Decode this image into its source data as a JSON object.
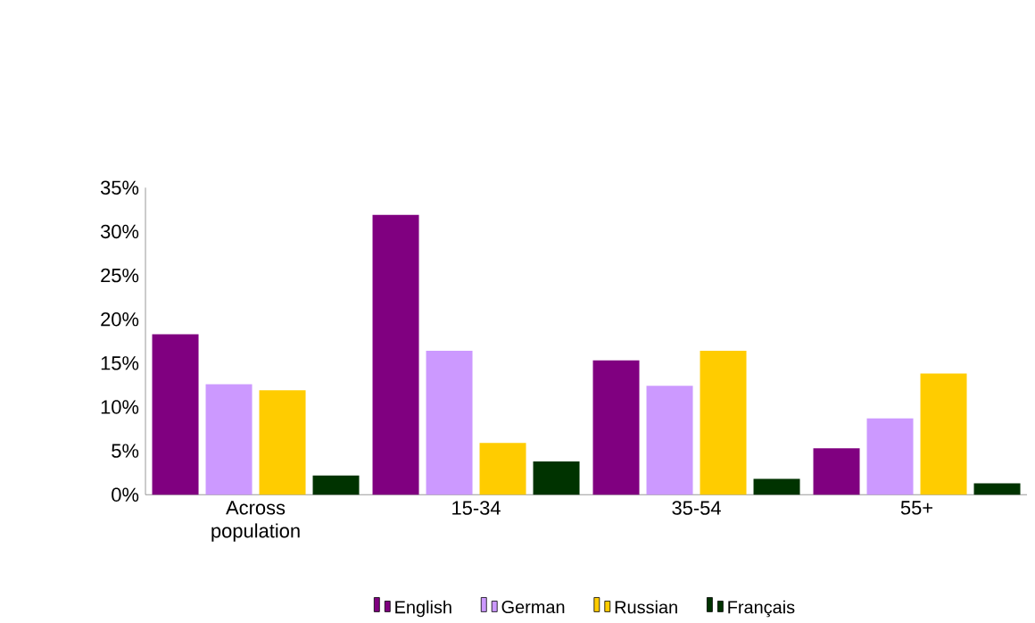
{
  "chart_data": {
    "type": "bar",
    "categories": [
      "Across population",
      "15-34",
      "35-54",
      "55+"
    ],
    "series": [
      {
        "name": "English",
        "color": "#800080",
        "values": [
          18.3,
          31.9,
          15.3,
          5.3
        ]
      },
      {
        "name": "German",
        "color": "#cc99ff",
        "values": [
          12.6,
          16.4,
          12.4,
          8.7
        ]
      },
      {
        "name": "Russian",
        "color": "#ffcc00",
        "values": [
          11.9,
          5.9,
          16.4,
          13.8
        ]
      },
      {
        "name": "Français",
        "color": "#003300",
        "values": [
          2.2,
          3.8,
          1.8,
          1.3
        ]
      }
    ],
    "ylim": [
      0,
      35
    ],
    "yticks": [
      {
        "value": 0,
        "label": "0%"
      },
      {
        "value": 5,
        "label": "5%"
      },
      {
        "value": 10,
        "label": "10%"
      },
      {
        "value": 15,
        "label": "15%"
      },
      {
        "value": 20,
        "label": "20%"
      },
      {
        "value": 25,
        "label": "25%"
      },
      {
        "value": 30,
        "label": "30%"
      },
      {
        "value": 35,
        "label": "35%"
      }
    ],
    "grid": false,
    "legend": "bottom"
  }
}
